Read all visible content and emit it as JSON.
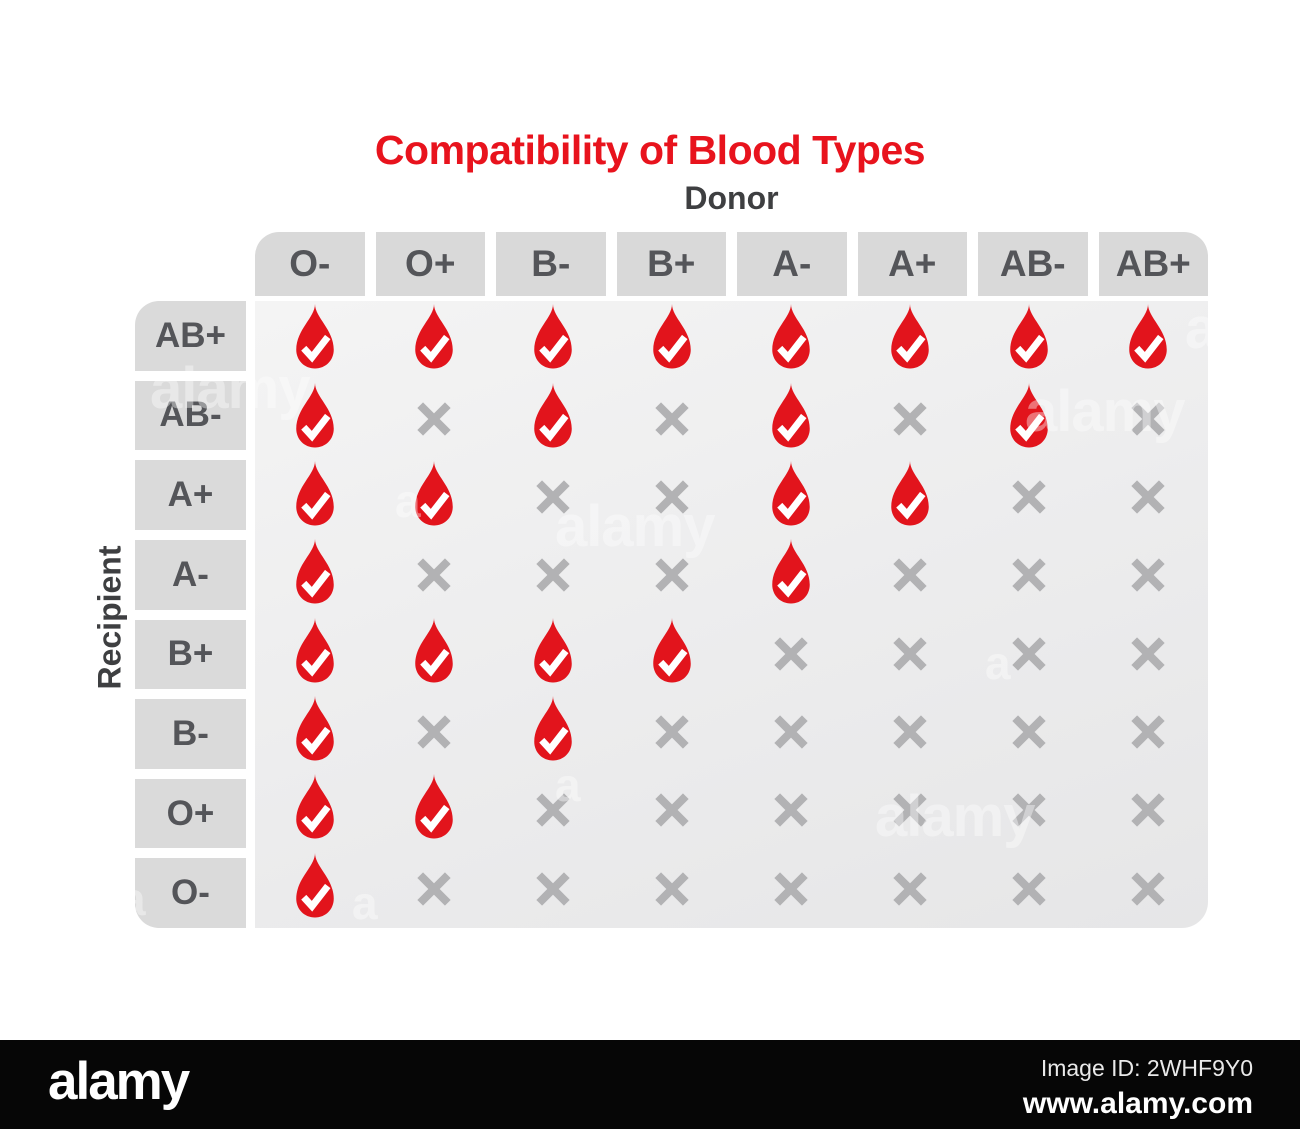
{
  "title": "Compatibility of Blood Types",
  "axes": {
    "donor": "Donor",
    "recipient": "Recipient"
  },
  "chart_data": {
    "type": "table",
    "title": "Compatibility of Blood Types",
    "columns_axis_label": "Donor",
    "rows_axis_label": "Recipient",
    "donor_types": [
      "O-",
      "O+",
      "B-",
      "B+",
      "A-",
      "A+",
      "AB-",
      "AB+"
    ],
    "recipient_types": [
      "AB+",
      "AB-",
      "A+",
      "A-",
      "B+",
      "B-",
      "O+",
      "O-"
    ],
    "compatible_marker": "blood-drop-check",
    "incompatible_marker": "cross",
    "matrix": [
      [
        1,
        1,
        1,
        1,
        1,
        1,
        1,
        1
      ],
      [
        1,
        0,
        1,
        0,
        1,
        0,
        1,
        0
      ],
      [
        1,
        1,
        0,
        0,
        1,
        1,
        0,
        0
      ],
      [
        1,
        0,
        0,
        0,
        1,
        0,
        0,
        0
      ],
      [
        1,
        1,
        1,
        1,
        0,
        0,
        0,
        0
      ],
      [
        1,
        0,
        1,
        0,
        0,
        0,
        0,
        0
      ],
      [
        1,
        1,
        0,
        0,
        0,
        0,
        0,
        0
      ],
      [
        1,
        0,
        0,
        0,
        0,
        0,
        0,
        0
      ]
    ]
  },
  "colors": {
    "accent_red": "#e2141c",
    "box_gray": "#d9d9d9",
    "cross_gray": "#b2b2b4",
    "text_dark": "#545559"
  },
  "watermark_text": "alamy",
  "footer": {
    "logo": "alamy",
    "image_id": "Image ID: 2WHF9Y0",
    "website": "www.alamy.com"
  }
}
